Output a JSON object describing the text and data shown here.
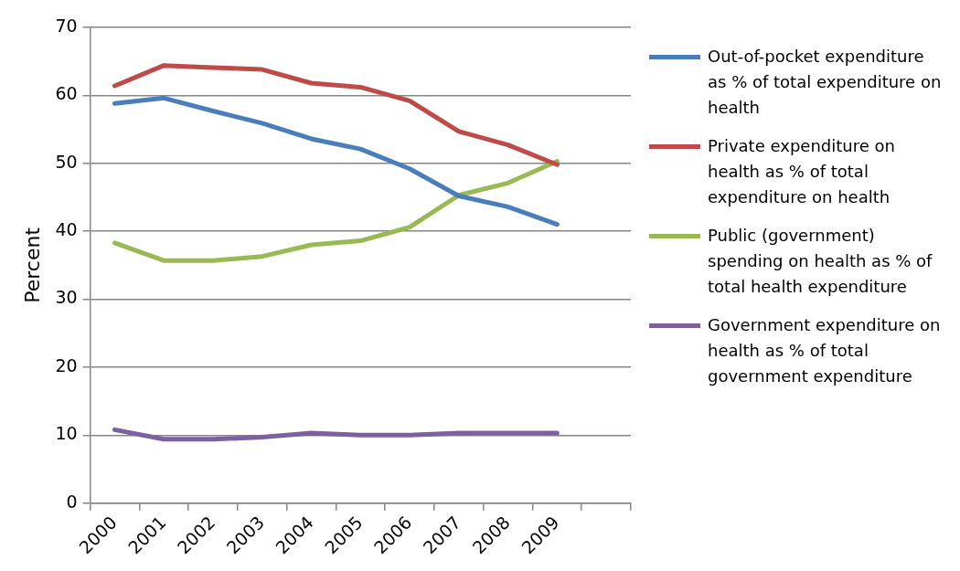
{
  "chart_data": {
    "type": "line",
    "ylabel": "Percent",
    "categories": [
      "2000",
      "2001",
      "2002",
      "2003",
      "2004",
      "2005",
      "2006",
      "2007",
      "2008",
      "2009",
      null
    ],
    "series": [
      {
        "name": "Out-of-pocket expenditure as % of total expenditure on health",
        "color": "#4a7ebb",
        "values": [
          58.8,
          59.6,
          57.7,
          55.9,
          53.6,
          52.1,
          49.2,
          45.2,
          43.6,
          41.0,
          null
        ]
      },
      {
        "name": "Private expenditure on health as % of total expenditure on health",
        "color": "#be4b48",
        "values": [
          61.4,
          64.4,
          64.1,
          63.8,
          61.8,
          61.2,
          59.2,
          54.7,
          52.7,
          49.8,
          null
        ]
      },
      {
        "name": "Public (government) spending on health as % of total health expenditure",
        "color": "#98b954",
        "values": [
          38.3,
          35.7,
          35.7,
          36.3,
          38.0,
          38.6,
          40.6,
          45.3,
          47.1,
          50.3,
          null
        ]
      },
      {
        "name": "Government expenditure on health as % of total government expenditure",
        "color": "#7d60a0",
        "values": [
          10.8,
          9.4,
          9.4,
          9.7,
          10.3,
          10.0,
          10.0,
          10.3,
          10.3,
          10.3,
          null
        ]
      }
    ],
    "ylim": [
      0,
      70
    ],
    "yticks": [
      0,
      10,
      20,
      30,
      40,
      50,
      60,
      70
    ],
    "grid": "y",
    "legend": "right",
    "marker": "none",
    "line_style": "solid"
  }
}
